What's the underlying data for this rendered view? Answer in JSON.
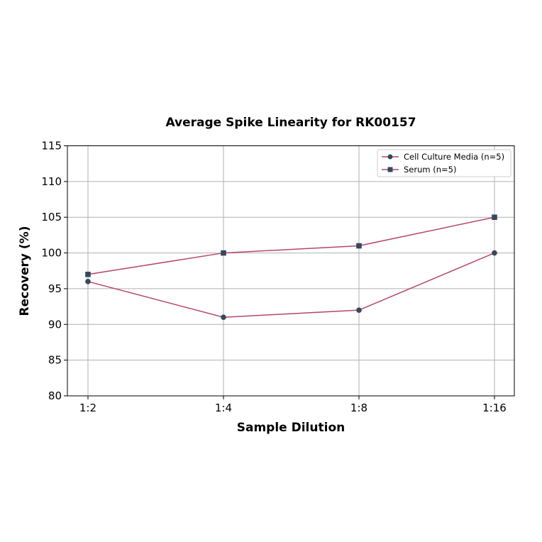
{
  "chart_data": {
    "type": "line",
    "title": "Average Spike Linearity for RK00157",
    "xlabel": "Sample Dilution",
    "ylabel": "Recovery (%)",
    "categories": [
      "1:2",
      "1:4",
      "1:8",
      "1:16"
    ],
    "ylim": [
      80,
      115
    ],
    "yticks": [
      80,
      85,
      90,
      95,
      100,
      105,
      110,
      115
    ],
    "grid": true,
    "legend_position": "upper right",
    "series": [
      {
        "name": "Cell Culture Media (n=5)",
        "marker": "circle",
        "values": [
          96,
          91,
          92,
          100
        ]
      },
      {
        "name": "Serum (n=5)",
        "marker": "square",
        "values": [
          97,
          100,
          101,
          105
        ]
      }
    ],
    "colors": {
      "line": "#b5476b",
      "marker": "#34495e",
      "grid": "#b0b0b0"
    }
  }
}
